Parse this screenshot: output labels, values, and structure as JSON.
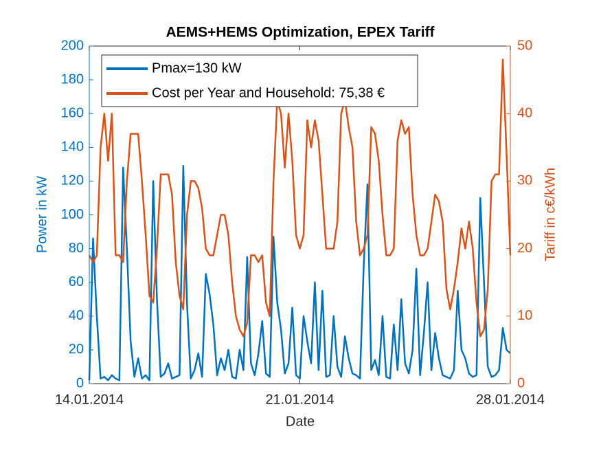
{
  "chart_data": {
    "type": "line",
    "title": "AEMS+HEMS Optimization, EPEX Tariff",
    "xlabel": "Date",
    "ylabel": "Power in kW",
    "y2label": "Tariff in c€/kWh",
    "xlim": [
      0,
      14
    ],
    "xticks": [
      {
        "value": 0,
        "label": "14.01.2014"
      },
      {
        "value": 7,
        "label": "21.01.2014"
      },
      {
        "value": 14,
        "label": "28.01.2014"
      }
    ],
    "ylim": [
      0,
      200
    ],
    "yticks": [
      0,
      20,
      40,
      60,
      80,
      100,
      120,
      140,
      160,
      180,
      200
    ],
    "y2lim": [
      0,
      50
    ],
    "y2ticks": [
      0,
      10,
      20,
      30,
      40,
      50
    ],
    "grid": false,
    "legend": "upper left",
    "x": [
      0,
      0.125,
      0.25,
      0.375,
      0.5,
      0.625,
      0.75,
      0.875,
      1,
      1.125,
      1.25,
      1.375,
      1.5,
      1.625,
      1.75,
      1.875,
      2,
      2.125,
      2.25,
      2.375,
      2.5,
      2.625,
      2.75,
      2.875,
      3,
      3.125,
      3.25,
      3.375,
      3.5,
      3.625,
      3.75,
      3.875,
      4,
      4.125,
      4.25,
      4.375,
      4.5,
      4.625,
      4.75,
      4.875,
      5,
      5.125,
      5.25,
      5.375,
      5.5,
      5.625,
      5.75,
      5.875,
      6,
      6.125,
      6.25,
      6.375,
      6.5,
      6.625,
      6.75,
      6.875,
      7,
      7.125,
      7.25,
      7.375,
      7.5,
      7.625,
      7.75,
      7.875,
      8,
      8.125,
      8.25,
      8.375,
      8.5,
      8.625,
      8.75,
      8.875,
      9,
      9.125,
      9.25,
      9.375,
      9.5,
      9.625,
      9.75,
      9.875,
      10,
      10.125,
      10.25,
      10.375,
      10.5,
      10.625,
      10.75,
      10.875,
      11,
      11.125,
      11.25,
      11.375,
      11.5,
      11.625,
      11.75,
      11.875,
      12,
      12.125,
      12.25,
      12.375,
      12.5,
      12.625,
      12.75,
      12.875,
      13,
      13.125,
      13.25,
      13.375,
      13.5,
      13.625,
      13.75,
      13.875,
      14
    ],
    "series": [
      {
        "name": "Pmax=130 kW",
        "color": "#0072BD",
        "axis": "y",
        "values": [
          2,
          86,
          40,
          3,
          4,
          2,
          5,
          3,
          2,
          128,
          80,
          25,
          4,
          15,
          3,
          5,
          2,
          120,
          50,
          4,
          6,
          12,
          3,
          4,
          5,
          129,
          47,
          3,
          8,
          18,
          4,
          65,
          53,
          35,
          5,
          15,
          8,
          20,
          4,
          3,
          20,
          8,
          75,
          12,
          5,
          18,
          37,
          6,
          4,
          87,
          48,
          32,
          6,
          12,
          45,
          5,
          3,
          40,
          25,
          12,
          60,
          8,
          55,
          4,
          5,
          40,
          10,
          4,
          28,
          15,
          6,
          5,
          3,
          70,
          118,
          8,
          14,
          5,
          40,
          4,
          3,
          35,
          8,
          50,
          12,
          6,
          20,
          68,
          5,
          30,
          60,
          8,
          30,
          15,
          5,
          4,
          3,
          8,
          55,
          20,
          15,
          6,
          4,
          5,
          110,
          60,
          10,
          4,
          5,
          8,
          33,
          20,
          18
        ]
      },
      {
        "name": "Cost per Year and Household: 75,38 €",
        "color": "#D95319",
        "axis": "y2",
        "values": [
          19,
          18,
          19,
          35,
          40,
          33,
          40,
          19,
          19,
          18,
          30,
          37,
          37,
          37,
          30,
          22,
          13,
          12,
          20,
          31,
          31,
          31,
          28,
          18,
          13,
          11,
          25,
          30,
          30,
          29,
          26,
          20,
          19,
          19,
          22,
          25,
          25,
          22,
          15,
          10,
          8,
          7,
          9,
          19,
          19,
          18,
          19,
          12,
          10,
          30,
          42,
          40,
          32,
          40,
          33,
          22,
          20,
          22,
          39,
          35,
          39,
          36,
          28,
          20,
          20,
          20,
          24,
          40,
          42,
          38,
          35,
          24,
          19,
          20,
          22,
          38,
          37,
          33,
          25,
          19,
          19,
          20,
          36,
          39,
          37,
          38,
          28,
          22,
          19,
          19,
          20,
          24,
          28,
          27,
          24,
          14,
          11,
          14,
          18,
          23,
          20,
          24,
          20,
          12,
          7,
          8,
          14,
          30,
          31,
          31,
          48,
          34,
          19
        ]
      }
    ]
  }
}
